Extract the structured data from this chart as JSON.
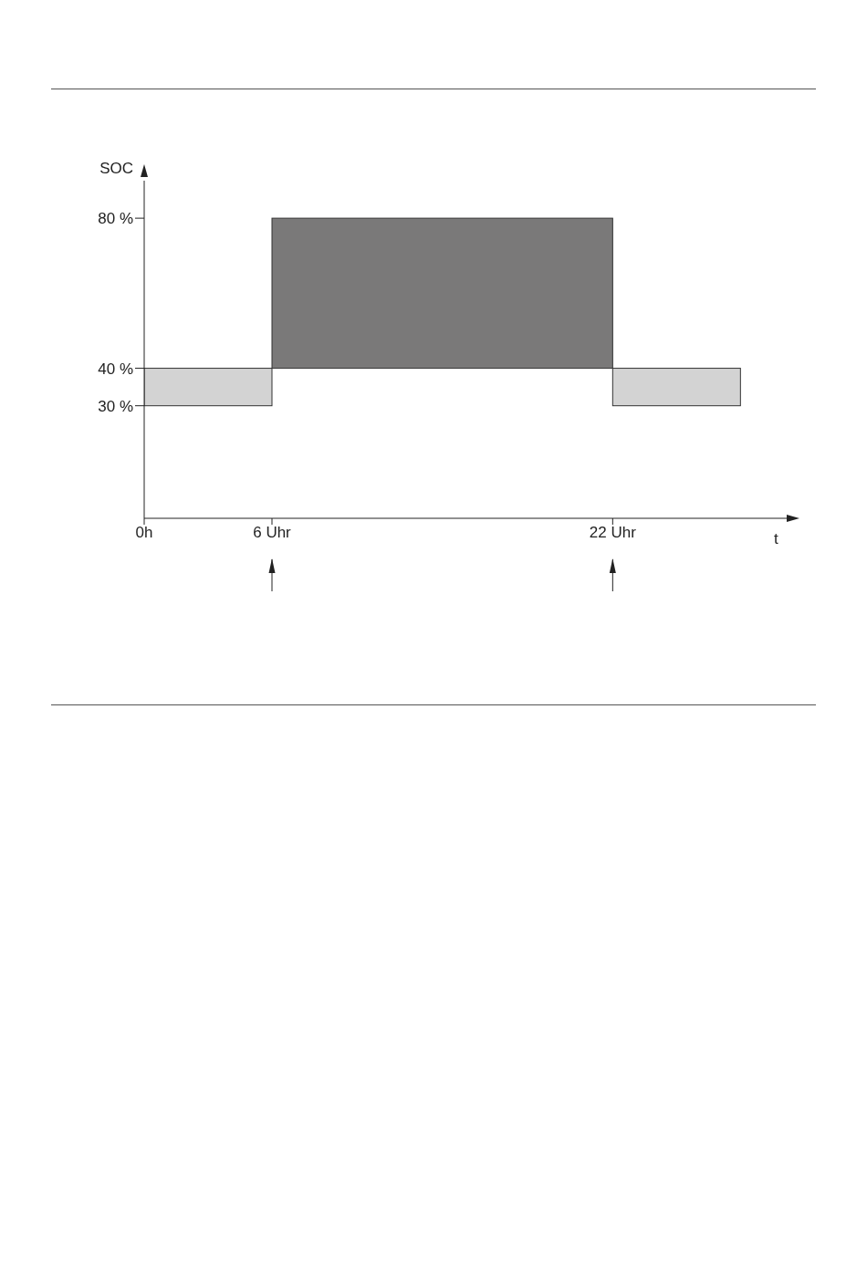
{
  "chart_data": {
    "type": "histogram",
    "xlabel": "t",
    "ylabel": "SOC",
    "bins": [
      0,
      6,
      22,
      28
    ],
    "values": [
      10,
      40,
      10
    ],
    "base": [
      30,
      40,
      30
    ],
    "colors": [
      "#d3d3d3",
      "#7a7979",
      "#d3d3d3"
    ],
    "xlim": [
      0,
      30
    ],
    "xticks": [
      {
        "value": 0,
        "label": "0h"
      },
      {
        "value": 6,
        "label": "6 Uhr"
      },
      {
        "value": 22,
        "label": "22 Uhr"
      }
    ],
    "ylim": [
      0,
      90
    ],
    "yticks": [
      {
        "value": 30,
        "label": "30 %"
      },
      {
        "value": 40,
        "label": "40 %"
      },
      {
        "value": 80,
        "label": "80 %"
      }
    ],
    "grid": false,
    "legend": false
  }
}
